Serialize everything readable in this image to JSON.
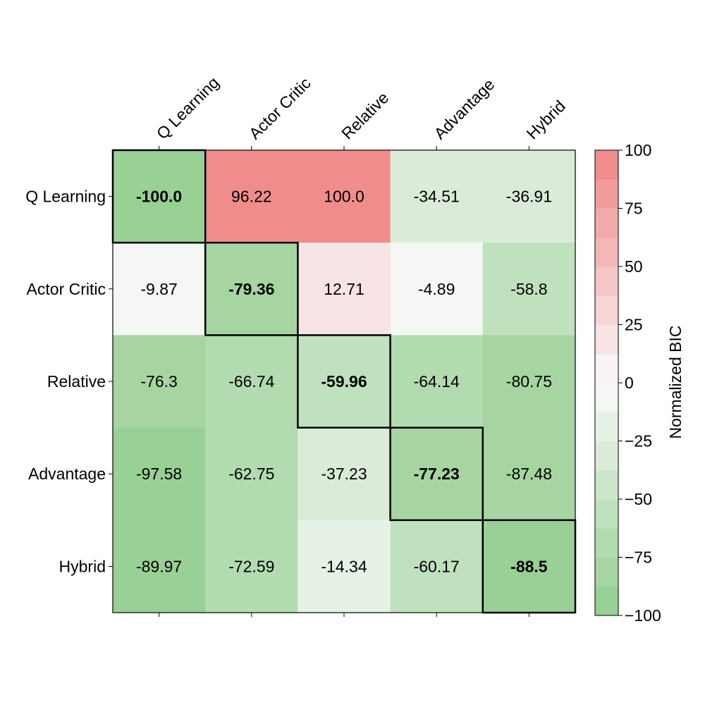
{
  "chart_data": {
    "type": "heatmap",
    "row_labels": [
      "Q Learning",
      "Actor Critic",
      "Relative",
      "Advantage",
      "Hybrid"
    ],
    "col_labels": [
      "Q Learning",
      "Actor Critic",
      "Relative",
      "Advantage",
      "Hybrid"
    ],
    "values": [
      [
        -100.0,
        96.22,
        100.0,
        -34.51,
        -36.91
      ],
      [
        -9.87,
        -79.36,
        12.71,
        -4.89,
        -58.8
      ],
      [
        -76.3,
        -66.74,
        -59.96,
        -64.14,
        -80.75
      ],
      [
        -97.58,
        -62.75,
        -37.23,
        -77.23,
        -87.48
      ],
      [
        -89.97,
        -72.59,
        -14.34,
        -60.17,
        -88.5
      ]
    ],
    "display_values": [
      [
        "-100.0",
        "96.22",
        "100.0",
        "-34.51",
        "-36.91"
      ],
      [
        "-9.87",
        "-79.36",
        "12.71",
        "-4.89",
        "-58.8"
      ],
      [
        "-76.3",
        "-66.74",
        "-59.96",
        "-64.14",
        "-80.75"
      ],
      [
        "-97.58",
        "-62.75",
        "-37.23",
        "-77.23",
        "-87.48"
      ],
      [
        "-89.97",
        "-72.59",
        "-14.34",
        "-60.17",
        "-88.5"
      ]
    ],
    "highlighted_cells": [
      [
        0,
        0
      ],
      [
        1,
        1
      ],
      [
        2,
        2
      ],
      [
        3,
        3
      ],
      [
        4,
        4
      ]
    ],
    "colorbar": {
      "label": "Normalized BIC",
      "min": -100,
      "max": 100,
      "levels": 16,
      "ticks": [
        100,
        75,
        50,
        25,
        0,
        -25,
        -50,
        -75,
        -100
      ],
      "tick_labels": [
        "100",
        "75",
        "50",
        "25",
        "0",
        "−25",
        "−50",
        "−75",
        "−100"
      ],
      "low_color": "#93cd8e",
      "mid_color": "#fafafa",
      "high_color": "#f08585"
    },
    "x_label_position": "top",
    "grid": false,
    "legend": "colorbar-right"
  }
}
